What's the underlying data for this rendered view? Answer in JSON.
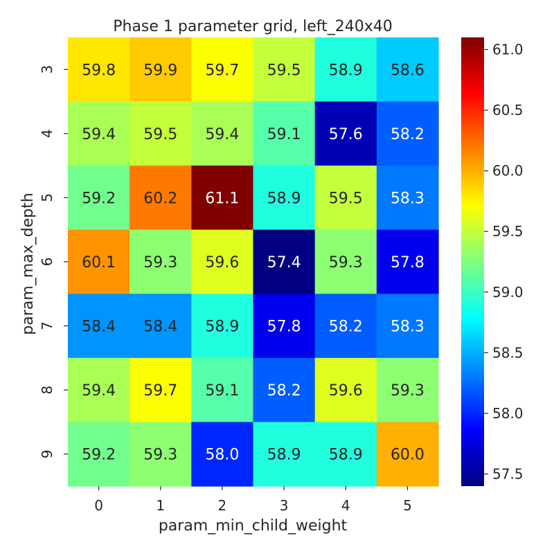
{
  "chart_data": {
    "type": "heatmap",
    "title": "Phase 1 parameter grid, left_240x40",
    "xlabel": "param_min_child_weight",
    "ylabel": "param_max_depth",
    "x_categories": [
      "0",
      "1",
      "2",
      "3",
      "4",
      "5"
    ],
    "y_categories": [
      "3",
      "4",
      "5",
      "6",
      "7",
      "8",
      "9"
    ],
    "values": [
      [
        59.8,
        59.9,
        59.7,
        59.5,
        58.9,
        58.6
      ],
      [
        59.4,
        59.5,
        59.4,
        59.1,
        57.6,
        58.2
      ],
      [
        59.2,
        60.2,
        61.1,
        58.9,
        59.5,
        58.3
      ],
      [
        60.1,
        59.3,
        59.6,
        57.4,
        59.3,
        57.8
      ],
      [
        58.4,
        58.4,
        58.9,
        57.8,
        58.2,
        58.3
      ],
      [
        59.4,
        59.7,
        59.1,
        58.2,
        59.6,
        59.3
      ],
      [
        59.2,
        59.3,
        58.0,
        58.9,
        58.9,
        60.0
      ]
    ],
    "value_labels": [
      [
        "59.8",
        "59.9",
        "59.7",
        "59.5",
        "58.9",
        "58.6"
      ],
      [
        "59.4",
        "59.5",
        "59.4",
        "59.1",
        "57.6",
        "58.2"
      ],
      [
        "59.2",
        "60.2",
        "61.1",
        "58.9",
        "59.5",
        "58.3"
      ],
      [
        "60.1",
        "59.3",
        "59.6",
        "57.4",
        "59.3",
        "57.8"
      ],
      [
        "58.4",
        "58.4",
        "58.9",
        "57.8",
        "58.2",
        "58.3"
      ],
      [
        "59.4",
        "59.7",
        "59.1",
        "58.2",
        "59.6",
        "59.3"
      ],
      [
        "59.2",
        "59.3",
        "58.0",
        "58.9",
        "58.9",
        "60.0"
      ]
    ],
    "colormap": "jet",
    "vmin": 57.4,
    "vmax": 61.1,
    "colorbar_ticks": [
      57.5,
      58.0,
      58.5,
      59.0,
      59.5,
      60.0,
      60.5,
      61.0
    ],
    "colorbar_tick_labels": [
      "57.5",
      "58.0",
      "58.5",
      "59.0",
      "59.5",
      "60.0",
      "60.5",
      "61.0"
    ],
    "annotation_colors": {
      "dark": "#262626",
      "light": "#ffffff"
    },
    "text_color": "#262626",
    "grid": false
  }
}
